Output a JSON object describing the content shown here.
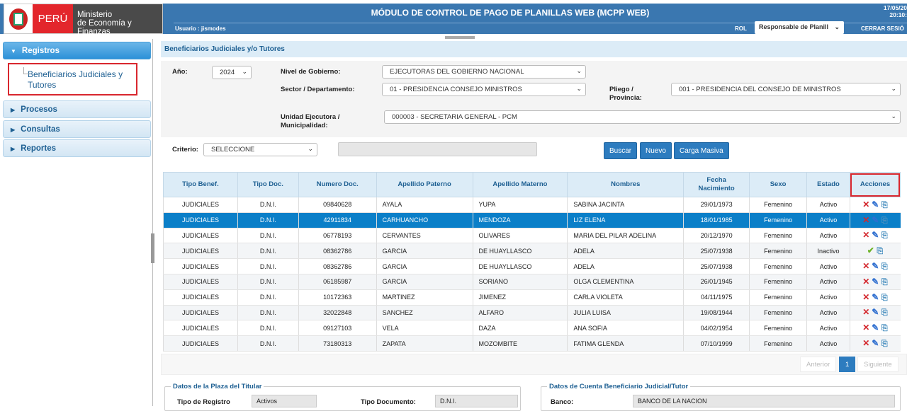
{
  "header": {
    "logo_country": "PERÚ",
    "logo_ministry_line1": "Ministerio",
    "logo_ministry_line2": "de Economía y Finanzas",
    "title": "MÓDULO DE CONTROL DE PAGO DE PLANILLAS WEB (MCPP WEB)",
    "user": "Usuario : jismodes",
    "rol_label": "ROL",
    "rol_value": "Responsable de Planill",
    "date": "17/05/20",
    "time": "20:10:",
    "logout": "CERRAR SESIÓ"
  },
  "sidebar": {
    "items": [
      {
        "label": "Registros",
        "open": true
      },
      {
        "label": "Procesos"
      },
      {
        "label": "Consultas"
      },
      {
        "label": "Reportes"
      }
    ],
    "subitem": "Beneficiarios Judiciales y Tutores"
  },
  "main": {
    "title": "Beneficiarios Judiciales y/o Tutores",
    "filters": {
      "anio_label": "Año:",
      "anio": "2024",
      "nivel_label": "Nivel de Gobierno:",
      "nivel": "EJECUTORAS DEL GOBIERNO NACIONAL",
      "sector_label": "Sector / Departamento:",
      "sector": "01 - PRESIDENCIA CONSEJO MINISTROS",
      "pliego_label": "Pliego / Provincia:",
      "pliego": "001 - PRESIDENCIA DEL CONSEJO DE MINISTROS",
      "unidad_label": "Unidad Ejecutora / Municipalidad:",
      "unidad": "000003 - SECRETARIA GENERAL - PCM",
      "criterio_label": "Criterio:",
      "criterio": "SELECCIONE"
    },
    "buttons": {
      "buscar": "Buscar",
      "nuevo": "Nuevo",
      "carga": "Carga Masiva"
    },
    "table": {
      "headers": [
        "Tipo Benef.",
        "Tipo Doc.",
        "Numero Doc.",
        "Apellido Paterno",
        "Apellido Materno",
        "Nombres",
        "Fecha Nacimiento",
        "Sexo",
        "Estado",
        "Acciones"
      ],
      "rows": [
        [
          "JUDICIALES",
          "D.N.I.",
          "09840628",
          "AYALA",
          "YUPA",
          "SABINA JACINTA",
          "29/01/1973",
          "Femenino",
          "Activo"
        ],
        [
          "JUDICIALES",
          "D.N.I.",
          "42911834",
          "CARHUANCHO",
          "MENDOZA",
          "LIZ ELENA",
          "18/01/1985",
          "Femenino",
          "Activo"
        ],
        [
          "JUDICIALES",
          "D.N.I.",
          "06778193",
          "CERVANTES",
          "OLIVARES",
          "MARIA DEL PILAR ADELINA",
          "20/12/1970",
          "Femenino",
          "Activo"
        ],
        [
          "JUDICIALES",
          "D.N.I.",
          "08362786",
          "GARCIA",
          "DE HUAYLLASCO",
          "ADELA",
          "25/07/1938",
          "Femenino",
          "Inactivo"
        ],
        [
          "JUDICIALES",
          "D.N.I.",
          "08362786",
          "GARCIA",
          "DE HUAYLLASCO",
          "ADELA",
          "25/07/1938",
          "Femenino",
          "Activo"
        ],
        [
          "JUDICIALES",
          "D.N.I.",
          "06185987",
          "GARCIA",
          "SORIANO",
          "OLGA CLEMENTINA",
          "26/01/1945",
          "Femenino",
          "Activo"
        ],
        [
          "JUDICIALES",
          "D.N.I.",
          "10172363",
          "MARTINEZ",
          "JIMENEZ",
          "CARLA VIOLETA",
          "04/11/1975",
          "Femenino",
          "Activo"
        ],
        [
          "JUDICIALES",
          "D.N.I.",
          "32022848",
          "SANCHEZ",
          "ALFARO",
          "JULIA LUISA",
          "19/08/1944",
          "Femenino",
          "Activo"
        ],
        [
          "JUDICIALES",
          "D.N.I.",
          "09127103",
          "VELA",
          "DAZA",
          "ANA SOFIA",
          "04/02/1954",
          "Femenino",
          "Activo"
        ],
        [
          "JUDICIALES",
          "D.N.I.",
          "73180313",
          "ZAPATA",
          "MOZOMBITE",
          "FATIMA GLENDA",
          "07/10/1999",
          "Femenino",
          "Activo"
        ]
      ],
      "selected_row": 1
    },
    "pagination": {
      "prev": "Anterior",
      "page": "1",
      "next": "Siguiente"
    },
    "plaza": {
      "legend": "Datos de la Plaza del Titular",
      "tipo_registro_label": "Tipo de Registro",
      "tipo_registro": "Activos",
      "tipo_doc_label": "Tipo Documento:",
      "tipo_doc": "D.N.I."
    },
    "cuenta": {
      "legend": "Datos de Cuenta Beneficiario Judicial/Tutor",
      "banco_label": "Banco:",
      "banco": "BANCO DE LA NACION"
    }
  },
  "colors": {
    "header": "#3a77b0",
    "accent": "#2d7cbf",
    "selected": "#0b7fc8",
    "highlight": "#d9272e"
  }
}
